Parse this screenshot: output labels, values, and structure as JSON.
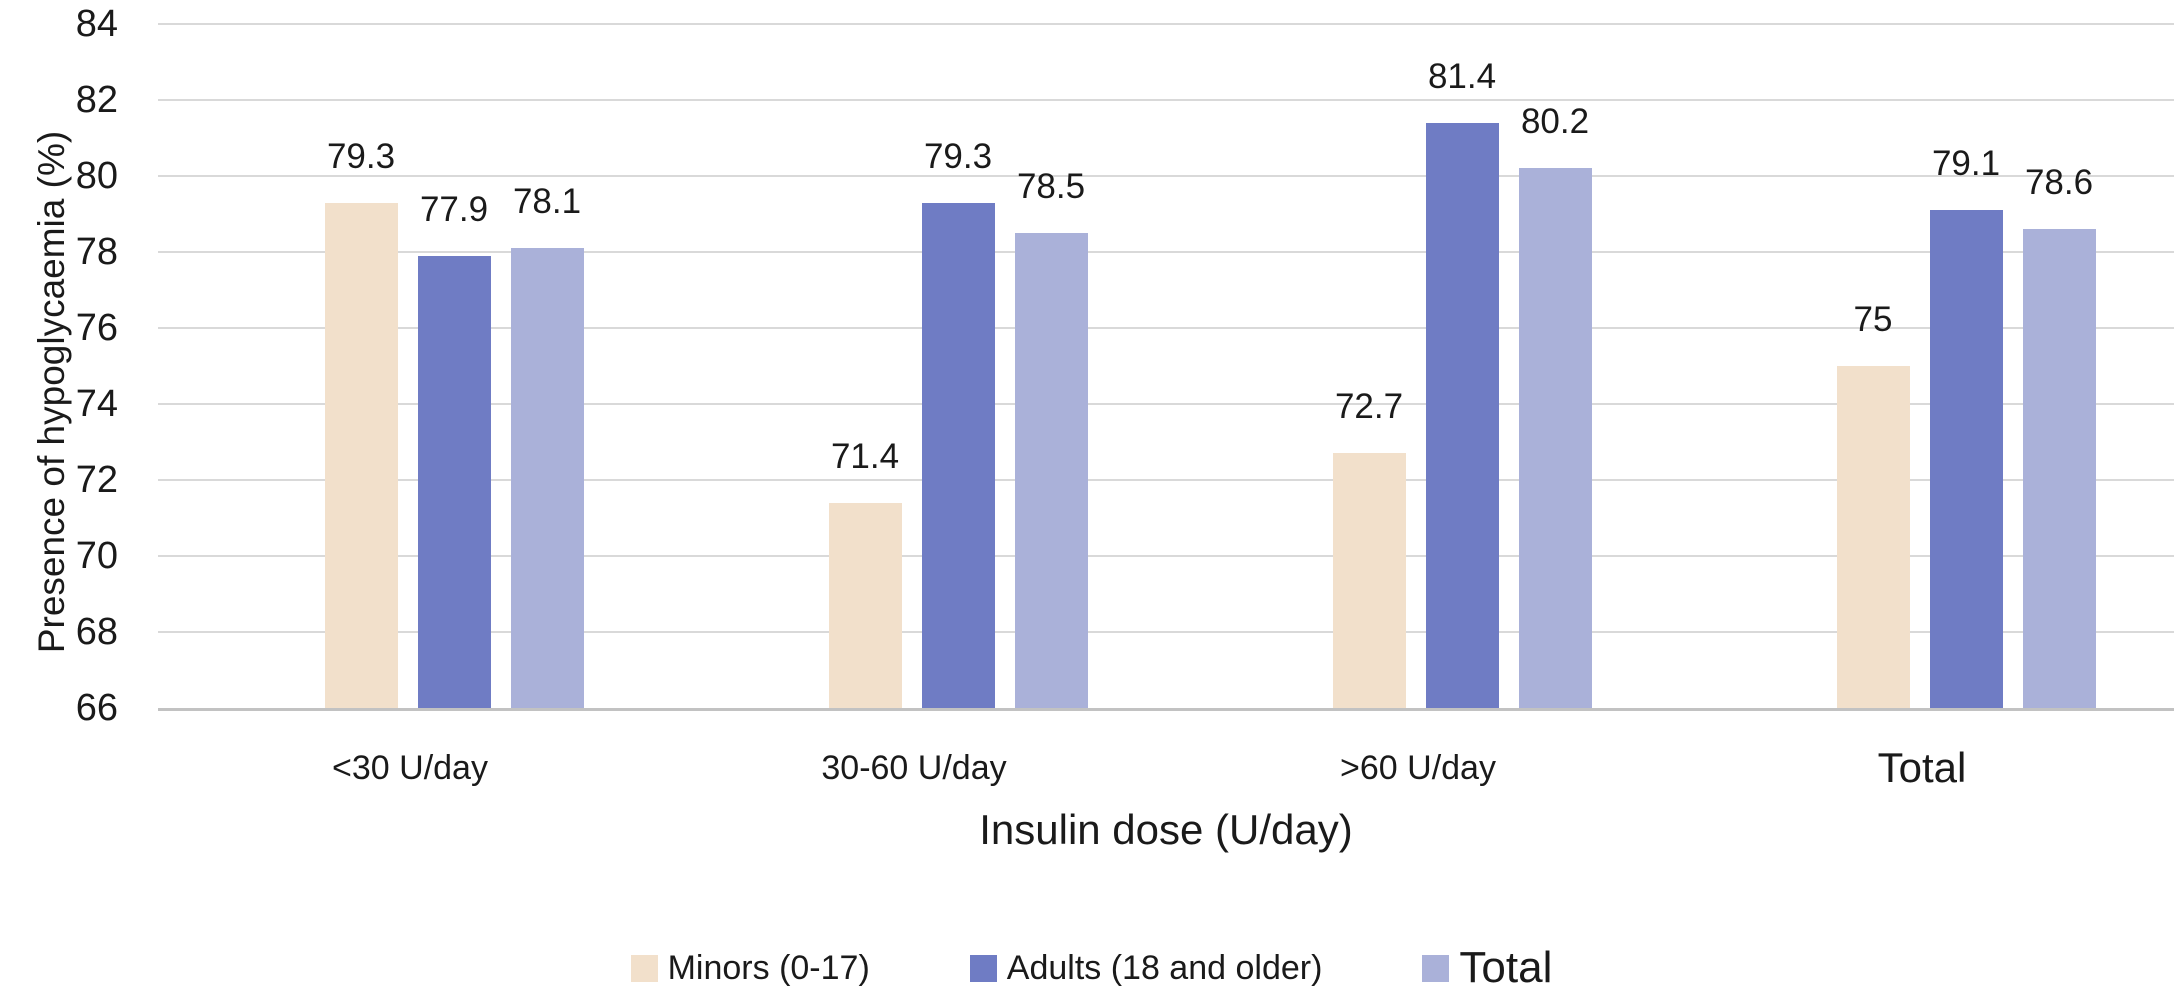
{
  "chart_data": {
    "type": "bar",
    "title": "",
    "xlabel": "Insulin dose (U/day)",
    "ylabel": "Presence of hypoglycaemia (%)",
    "categories": [
      "<30 U/day",
      "30-60 U/day",
      ">60 U/day",
      "Total"
    ],
    "series": [
      {
        "name": "Minors (0-17)",
        "color": "#f2e0cb",
        "values": [
          79.3,
          71.4,
          72.7,
          75
        ]
      },
      {
        "name": "Adults (18 and older)",
        "color": "#6f7cc4",
        "values": [
          77.9,
          79.3,
          81.4,
          79.1
        ]
      },
      {
        "name": "Total",
        "color": "#aab1d9",
        "values": [
          78.1,
          78.5,
          80.2,
          78.6
        ]
      }
    ],
    "data_labels": [
      [
        "79.3",
        "71.4",
        "72.7",
        "75"
      ],
      [
        "77.9",
        "79.3",
        "81.4",
        "79.1"
      ],
      [
        "78.1",
        "78.5",
        "80.2",
        "78.6"
      ]
    ],
    "ylim": [
      66,
      84
    ],
    "yticks": [
      66,
      68,
      70,
      72,
      74,
      76,
      78,
      80,
      82,
      84
    ],
    "grid": "horizontal",
    "legend_position": "bottom",
    "colors": {
      "gridline": "#d9d9d9",
      "axis_line": "#c2c2c2",
      "text": "#1a1a1a",
      "background": "#ffffff"
    }
  }
}
